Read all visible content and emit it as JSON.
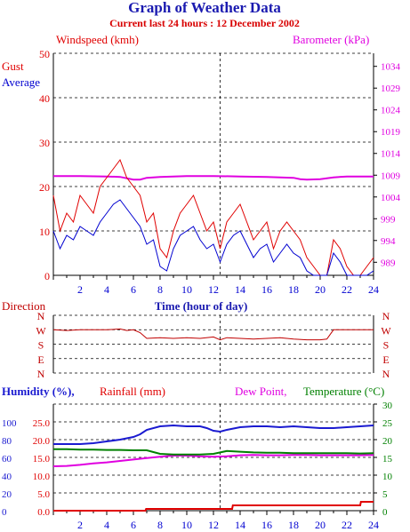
{
  "header": {
    "title": "Graph of Weather Data",
    "subtitle": "Current last 24 hours : 12 December 2002"
  },
  "colors": {
    "title": "#1a1ab0",
    "subtitle": "#d80000",
    "gust": "#e00000",
    "average": "#0000d0",
    "barometer": "#e000e0",
    "humidity": "#1a1ad0",
    "rainfall": "#e00000",
    "dew_point": "#e000e0",
    "temperature": "#008000",
    "direction": "#c00000",
    "grid": "#000000"
  },
  "chart_data": [
    {
      "id": "wind",
      "type": "line",
      "labels": {
        "left_title": "Windspeed (kmh)",
        "right_title": "Barometer (kPa)",
        "gust": "Gust",
        "average": "Average",
        "xlabel": "Time (hour of day)"
      },
      "xlim": [
        0,
        24
      ],
      "x_ticks": [
        "2",
        "4",
        "6",
        "8",
        "10",
        "12",
        "14",
        "16",
        "18",
        "20",
        "22",
        "24"
      ],
      "y_left_lim": [
        0,
        50
      ],
      "y_left_ticks": [
        "0",
        "10",
        "20",
        "30",
        "40",
        "50"
      ],
      "y_right_lim": [
        986,
        1037
      ],
      "y_right_ticks": [
        "989",
        "994",
        "999",
        "1004",
        "1009",
        "1014",
        "1019",
        "1024",
        "1029",
        "1034"
      ],
      "series": [
        {
          "name": "Gust",
          "axis": "left",
          "x": [
            0,
            0.5,
            1,
            1.5,
            2,
            2.5,
            3,
            3.5,
            4,
            4.5,
            5,
            5.5,
            6,
            6.5,
            7,
            7.5,
            8,
            8.5,
            9,
            9.5,
            10,
            10.5,
            11,
            11.5,
            12,
            12.5,
            13,
            13.5,
            14,
            14.5,
            15,
            15.5,
            16,
            16.5,
            17,
            17.5,
            18,
            18.5,
            19,
            19.5,
            20,
            20.5,
            21,
            21.5,
            22,
            22.5,
            23,
            23.5,
            24
          ],
          "values": [
            18,
            10,
            14,
            12,
            18,
            16,
            14,
            20,
            22,
            24,
            26,
            22,
            20,
            18,
            12,
            14,
            6,
            4,
            10,
            14,
            16,
            18,
            14,
            10,
            12,
            6,
            12,
            14,
            16,
            12,
            8,
            10,
            12,
            6,
            10,
            12,
            10,
            8,
            4,
            2,
            0,
            0,
            8,
            6,
            2,
            0,
            0,
            2,
            4
          ]
        },
        {
          "name": "Average",
          "axis": "left",
          "x": [
            0,
            0.5,
            1,
            1.5,
            2,
            2.5,
            3,
            3.5,
            4,
            4.5,
            5,
            5.5,
            6,
            6.5,
            7,
            7.5,
            8,
            8.5,
            9,
            9.5,
            10,
            10.5,
            11,
            11.5,
            12,
            12.5,
            13,
            13.5,
            14,
            14.5,
            15,
            15.5,
            16,
            16.5,
            17,
            17.5,
            18,
            18.5,
            19,
            19.5,
            20,
            20.5,
            21,
            21.5,
            22,
            22.5,
            23,
            23.5,
            24
          ],
          "values": [
            10,
            6,
            9,
            8,
            11,
            10,
            9,
            12,
            14,
            16,
            17,
            15,
            13,
            11,
            7,
            8,
            2,
            1,
            6,
            9,
            10,
            11,
            8,
            6,
            7,
            3,
            7,
            9,
            10,
            7,
            4,
            6,
            7,
            3,
            5,
            7,
            5,
            4,
            1,
            0,
            0,
            0,
            5,
            3,
            0,
            0,
            0,
            0,
            1
          ]
        },
        {
          "name": "Barometer",
          "axis": "right",
          "x": [
            0,
            2,
            4,
            5,
            6,
            6.5,
            7,
            8,
            9,
            10,
            12,
            14,
            16,
            17,
            18,
            18.5,
            19,
            20,
            21,
            22,
            24
          ],
          "values": [
            1008.8,
            1008.8,
            1008.7,
            1008.6,
            1008,
            1008,
            1008.4,
            1008.6,
            1008.7,
            1008.8,
            1008.8,
            1008.7,
            1008.6,
            1008.5,
            1008.4,
            1008.1,
            1008,
            1008.1,
            1008.5,
            1008.7,
            1008.7
          ]
        }
      ]
    },
    {
      "id": "direction",
      "type": "line",
      "labels": {
        "title": "Direction",
        "y_ticks": [
          "N",
          "W",
          "S",
          "E",
          "N"
        ]
      },
      "xlim": [
        0,
        24
      ],
      "ylim": [
        0,
        4
      ],
      "series": [
        {
          "name": "Direction",
          "x": [
            0,
            1,
            2,
            3,
            4,
            5,
            5.5,
            6,
            6.5,
            7,
            8,
            9,
            10,
            11,
            12,
            12.5,
            13,
            14,
            15,
            16,
            17,
            18,
            19,
            20,
            20.5,
            21,
            22,
            23,
            24
          ],
          "values": [
            3.0,
            2.95,
            3.0,
            3.0,
            3.0,
            3.05,
            2.95,
            3.0,
            2.8,
            2.4,
            2.45,
            2.4,
            2.45,
            2.4,
            2.5,
            2.3,
            2.45,
            2.4,
            2.35,
            2.4,
            2.45,
            2.35,
            2.3,
            2.3,
            2.35,
            3.0,
            3.0,
            3.0,
            3.0
          ]
        }
      ]
    },
    {
      "id": "climate",
      "type": "line",
      "labels": {
        "humidity": "Humidity (%),",
        "rainfall": "Rainfall (mm)",
        "dew_point": "Dew Point,",
        "temperature": "Temperature (°C)"
      },
      "xlim": [
        0,
        24
      ],
      "x_ticks": [
        "2",
        "4",
        "6",
        "8",
        "10",
        "12",
        "14",
        "16",
        "18",
        "20",
        "22",
        "24"
      ],
      "humidity_ticks": [
        "0",
        "20",
        "40",
        "60",
        "80",
        "100"
      ],
      "rainfall_ticks": [
        "0.0",
        "5.0",
        "10.0",
        "15.0",
        "20.0",
        "25.0"
      ],
      "temperature_ticks": [
        "0",
        "5",
        "10",
        "15",
        "20",
        "25",
        "30"
      ],
      "series": [
        {
          "name": "Humidity",
          "axis": "humidity",
          "ylim": [
            0,
            120
          ],
          "x": [
            0,
            1,
            2,
            3,
            4,
            5,
            6,
            6.5,
            7,
            8,
            9,
            10,
            11,
            11.5,
            12,
            12.5,
            13,
            14,
            15,
            16,
            17,
            18,
            19,
            20,
            21,
            22,
            23,
            24
          ],
          "values": [
            75,
            75,
            75,
            76,
            78,
            80,
            83,
            86,
            91,
            95,
            96,
            95,
            95,
            93,
            90,
            89,
            91,
            94,
            95,
            95,
            94,
            95,
            94,
            93,
            93,
            94,
            95,
            96
          ]
        },
        {
          "name": "Rainfall",
          "axis": "rainfall",
          "ylim": [
            0,
            30
          ],
          "x": [
            0,
            6.9,
            6.95,
            13.4,
            13.45,
            23,
            23.05,
            24
          ],
          "values": [
            0,
            0,
            0.5,
            0.5,
            1.5,
            1.5,
            2.5,
            2.5
          ]
        },
        {
          "name": "Dew Point",
          "axis": "temperature",
          "ylim": [
            0,
            30
          ],
          "x": [
            0,
            1,
            2,
            3,
            4,
            5,
            6,
            7,
            8,
            9,
            10,
            11,
            12,
            13,
            14,
            15,
            16,
            17,
            18,
            19,
            20,
            21,
            22,
            23,
            24
          ],
          "values": [
            12.5,
            12.6,
            12.9,
            13.3,
            13.6,
            14,
            14.4,
            14.8,
            15.2,
            15.5,
            15.5,
            15.3,
            15.2,
            15.3,
            15.6,
            15.7,
            15.6,
            15.6,
            15.7,
            15.7,
            15.6,
            15.6,
            15.6,
            15.6,
            15.7
          ]
        },
        {
          "name": "Temperature",
          "axis": "temperature",
          "ylim": [
            0,
            30
          ],
          "x": [
            0,
            1,
            2,
            3,
            4,
            5,
            6,
            7,
            7.5,
            8,
            9,
            10,
            11,
            12,
            13,
            14,
            15,
            16,
            17,
            18,
            19,
            20,
            21,
            22,
            23,
            24
          ],
          "values": [
            17.3,
            17.3,
            17.2,
            17.2,
            17.1,
            17.1,
            17,
            17,
            16.5,
            16,
            15.8,
            15.8,
            15.8,
            16,
            16.8,
            16.6,
            16.4,
            16.3,
            16.3,
            16.2,
            16.2,
            16.2,
            16.2,
            16.2,
            16.1,
            16.2
          ]
        }
      ]
    }
  ]
}
